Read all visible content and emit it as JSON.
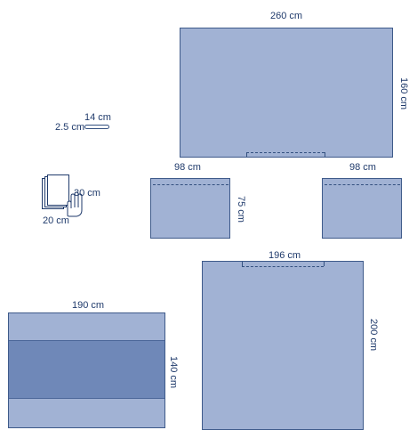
{
  "colors": {
    "panel_fill": "#a1b2d4",
    "panel_border": "#3e5a8a",
    "panel_dark_band": "#6f88b8",
    "label_text": "#1f3a6b"
  },
  "icons": {
    "tape": "tape-strip-icon",
    "towels": "towel-stack-with-hand-icon"
  },
  "main_drape": {
    "width_label": "260 cm",
    "height_label": "160 cm"
  },
  "tape": {
    "length_label": "14 cm",
    "width_label": "2.5 cm"
  },
  "towels": {
    "height_label": "30 cm",
    "width_label": "20 cm"
  },
  "drape_left": {
    "width_label": "98 cm",
    "height_label": "75 cm"
  },
  "drape_right": {
    "width_label": "98 cm"
  },
  "drape_large": {
    "width_label": "196 cm",
    "height_label": "200 cm"
  },
  "drape_table": {
    "width_label": "190 cm",
    "height_label": "140 cm"
  }
}
